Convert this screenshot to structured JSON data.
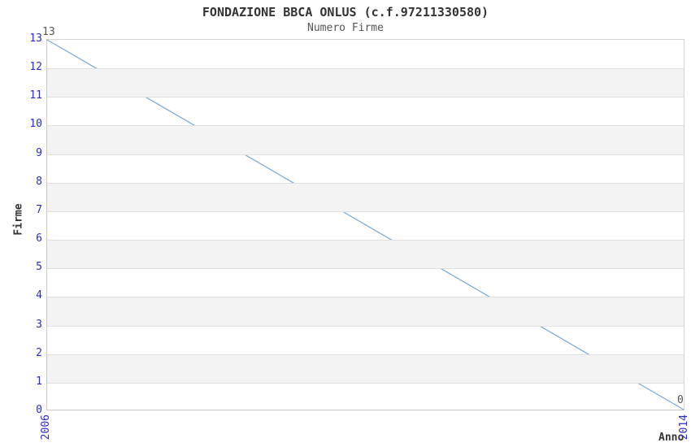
{
  "chart_data": {
    "type": "line",
    "title": "FONDAZIONE BBCA ONLUS (c.f.97211330580)",
    "subtitle": "Numero Firme",
    "xlabel": "Anno",
    "ylabel": "Firme",
    "x": [
      2006,
      2014
    ],
    "y": [
      13,
      0
    ],
    "xlim": [
      2006,
      2014
    ],
    "ylim": [
      0,
      13
    ],
    "xticks": [
      "2006",
      "2014"
    ],
    "yticks": [
      0,
      1,
      2,
      3,
      4,
      5,
      6,
      7,
      8,
      9,
      10,
      11,
      12,
      13
    ],
    "point_labels": [
      "13",
      "0"
    ],
    "grid": true,
    "legend": "none",
    "line_color": "#7dabd8",
    "tick_label_color": "#2b2bc8",
    "band_color": "#f3f3f3",
    "grid_color": "#e0e0e0",
    "point_label_color": "#555555"
  }
}
